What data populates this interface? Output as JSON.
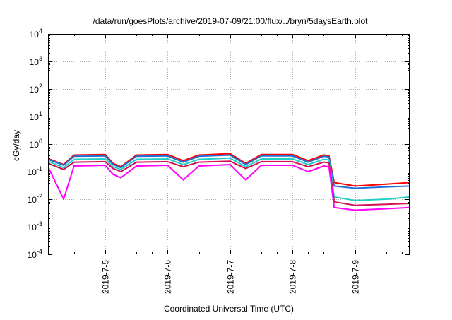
{
  "chart_data": {
    "type": "line",
    "title": "/data/run/goesPlots/archive/2019-07-09/21:00/flux/../bryn/5daysEarth.plot",
    "xlabel": "Coordinated Universal Time (UTC)",
    "ylabel": "cGy/day",
    "y_scale": "log",
    "ylim": [
      0.0001,
      10000
    ],
    "y_ticks": [
      {
        "value": 10000,
        "base": "10",
        "exp": "4"
      },
      {
        "value": 1000,
        "base": "10",
        "exp": "3"
      },
      {
        "value": 100,
        "base": "10",
        "exp": "2"
      },
      {
        "value": 10,
        "base": "10",
        "exp": "1"
      },
      {
        "value": 1,
        "base": "10",
        "exp": "0"
      },
      {
        "value": 0.1,
        "base": "10",
        "exp": "-1"
      },
      {
        "value": 0.01,
        "base": "10",
        "exp": "-2"
      },
      {
        "value": 0.001,
        "base": "10",
        "exp": "-3"
      },
      {
        "value": 0.0001,
        "base": "10",
        "exp": "-4"
      }
    ],
    "xlim": [
      "2019-07-04T02:00",
      "2019-07-09T21:00"
    ],
    "x_ticks": [
      {
        "value": "2019-07-05T00:00",
        "label": "2019-7-5"
      },
      {
        "value": "2019-07-06T00:00",
        "label": "2019-7-6"
      },
      {
        "value": "2019-07-07T00:00",
        "label": "2019-7-7"
      },
      {
        "value": "2019-07-08T00:00",
        "label": "2019-7-8"
      },
      {
        "value": "2019-07-09T00:00",
        "label": "2019-7-9"
      }
    ],
    "grid": true,
    "series": [
      {
        "color": "#ff0000",
        "x": [
          "2019-07-04T02:00",
          "2019-07-04T08:00",
          "2019-07-04T12:00",
          "2019-07-05T00:00",
          "2019-07-05T03:00",
          "2019-07-05T06:00",
          "2019-07-05T12:00",
          "2019-07-06T00:00",
          "2019-07-06T06:00",
          "2019-07-06T12:00",
          "2019-07-07T00:00",
          "2019-07-07T06:00",
          "2019-07-07T12:00",
          "2019-07-08T00:00",
          "2019-07-08T06:00",
          "2019-07-08T12:00",
          "2019-07-08T14:00",
          "2019-07-08T16:00",
          "2019-07-09T00:00",
          "2019-07-09T12:00",
          "2019-07-09T21:00"
        ],
        "values": [
          0.3,
          0.18,
          0.4,
          0.42,
          0.2,
          0.15,
          0.4,
          0.42,
          0.25,
          0.4,
          0.45,
          0.2,
          0.42,
          0.42,
          0.25,
          0.4,
          0.38,
          0.04,
          0.03,
          0.035,
          0.04
        ]
      },
      {
        "color": "#1f6fd6",
        "x": [
          "2019-07-04T02:00",
          "2019-07-04T08:00",
          "2019-07-04T12:00",
          "2019-07-05T00:00",
          "2019-07-05T03:00",
          "2019-07-05T06:00",
          "2019-07-05T12:00",
          "2019-07-06T00:00",
          "2019-07-06T06:00",
          "2019-07-06T12:00",
          "2019-07-07T00:00",
          "2019-07-07T06:00",
          "2019-07-07T12:00",
          "2019-07-08T00:00",
          "2019-07-08T06:00",
          "2019-07-08T12:00",
          "2019-07-08T14:00",
          "2019-07-08T16:00",
          "2019-07-09T00:00",
          "2019-07-09T12:00",
          "2019-07-09T21:00"
        ],
        "values": [
          0.28,
          0.17,
          0.36,
          0.37,
          0.18,
          0.14,
          0.36,
          0.37,
          0.22,
          0.36,
          0.4,
          0.18,
          0.37,
          0.37,
          0.22,
          0.36,
          0.34,
          0.03,
          0.025,
          0.028,
          0.03
        ]
      },
      {
        "color": "#22cfc5",
        "x": [
          "2019-07-04T02:00",
          "2019-07-04T08:00",
          "2019-07-04T12:00",
          "2019-07-05T00:00",
          "2019-07-05T03:00",
          "2019-07-05T06:00",
          "2019-07-05T12:00",
          "2019-07-06T00:00",
          "2019-07-06T06:00",
          "2019-07-06T12:00",
          "2019-07-07T00:00",
          "2019-07-07T06:00",
          "2019-07-07T12:00",
          "2019-07-08T00:00",
          "2019-07-08T06:00",
          "2019-07-08T12:00",
          "2019-07-08T14:00",
          "2019-07-08T16:00",
          "2019-07-09T00:00",
          "2019-07-09T12:00",
          "2019-07-09T21:00"
        ],
        "values": [
          0.24,
          0.14,
          0.28,
          0.29,
          0.15,
          0.12,
          0.28,
          0.29,
          0.18,
          0.28,
          0.31,
          0.15,
          0.29,
          0.29,
          0.18,
          0.28,
          0.27,
          0.012,
          0.009,
          0.01,
          0.012
        ]
      },
      {
        "color": "#d01050",
        "x": [
          "2019-07-04T02:00",
          "2019-07-04T08:00",
          "2019-07-04T12:00",
          "2019-07-05T00:00",
          "2019-07-05T03:00",
          "2019-07-05T06:00",
          "2019-07-05T12:00",
          "2019-07-06T00:00",
          "2019-07-06T06:00",
          "2019-07-06T12:00",
          "2019-07-07T00:00",
          "2019-07-07T06:00",
          "2019-07-07T12:00",
          "2019-07-08T00:00",
          "2019-07-08T06:00",
          "2019-07-08T12:00",
          "2019-07-08T14:00",
          "2019-07-08T16:00",
          "2019-07-09T00:00",
          "2019-07-09T12:00",
          "2019-07-09T21:00"
        ],
        "values": [
          0.2,
          0.12,
          0.22,
          0.23,
          0.13,
          0.1,
          0.22,
          0.23,
          0.15,
          0.22,
          0.24,
          0.13,
          0.23,
          0.23,
          0.15,
          0.22,
          0.21,
          0.008,
          0.006,
          0.0065,
          0.007
        ]
      },
      {
        "color": "#ff00ff",
        "x": [
          "2019-07-04T02:00",
          "2019-07-04T08:00",
          "2019-07-04T12:00",
          "2019-07-05T00:00",
          "2019-07-05T03:00",
          "2019-07-05T06:00",
          "2019-07-05T12:00",
          "2019-07-06T00:00",
          "2019-07-06T06:00",
          "2019-07-06T12:00",
          "2019-07-07T00:00",
          "2019-07-07T06:00",
          "2019-07-07T12:00",
          "2019-07-08T00:00",
          "2019-07-08T06:00",
          "2019-07-08T12:00",
          "2019-07-08T14:00",
          "2019-07-08T16:00",
          "2019-07-09T00:00",
          "2019-07-09T12:00",
          "2019-07-09T21:00"
        ],
        "values": [
          0.15,
          0.01,
          0.16,
          0.17,
          0.08,
          0.06,
          0.16,
          0.17,
          0.05,
          0.16,
          0.18,
          0.05,
          0.17,
          0.17,
          0.1,
          0.16,
          0.15,
          0.005,
          0.004,
          0.0045,
          0.005
        ]
      }
    ]
  }
}
